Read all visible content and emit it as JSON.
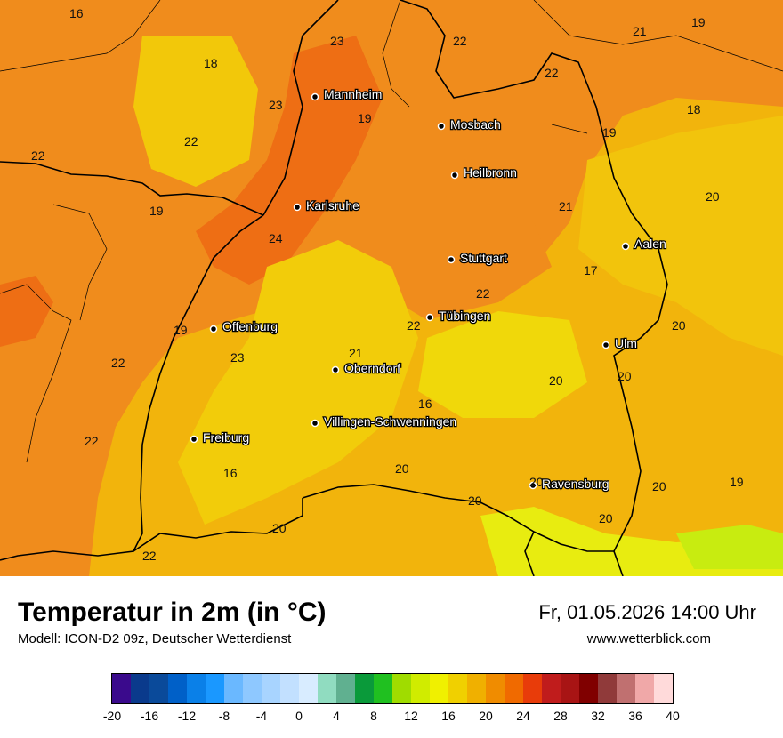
{
  "title": "Temperatur in 2m (in °C)",
  "model": "Modell: ICON-D2 09z, Deutscher Wetterdienst",
  "datetime": "Fr, 01.05.2026 14:00 Uhr",
  "website": "www.wetterblick.com",
  "cities": [
    "Mannheim",
    "Mosbach",
    "Heilbronn",
    "Karlsruhe",
    "Aalen",
    "Stuttgart",
    "Tübingen",
    "Offenburg",
    "Ulm",
    "Oberndorf",
    "Villingen-Schwenningen",
    "Freiburg",
    "Ravensburg"
  ],
  "temperature_labels": [
    "16",
    "23",
    "22",
    "21",
    "19",
    "18",
    "23",
    "22",
    "19",
    "18",
    "22",
    "22",
    "19",
    "21",
    "20",
    "24",
    "17",
    "22",
    "22",
    "20",
    "19",
    "21",
    "23",
    "22",
    "20",
    "20",
    "16",
    "22",
    "20",
    "16",
    "20",
    "20",
    "20",
    "19",
    "20",
    "20",
    "22"
  ],
  "legend": {
    "unit": "°C",
    "tick_labels": [
      "-20",
      "-16",
      "-12",
      "-8",
      "-4",
      "0",
      "4",
      "8",
      "12",
      "16",
      "20",
      "24",
      "28",
      "32",
      "36",
      "40"
    ],
    "colors": [
      "#3a0a8c",
      "#0a3a8c",
      "#0a4a9a",
      "#0060c8",
      "#0a80e8",
      "#1a98ff",
      "#6ab8ff",
      "#8ec8ff",
      "#a8d4ff",
      "#c2e0ff",
      "#d8ecff",
      "#90dcc0",
      "#60b090",
      "#0a9a3a",
      "#20c020",
      "#a0dc00",
      "#d0ec00",
      "#f0f000",
      "#f0d000",
      "#f0b000",
      "#f08c00",
      "#f06a00",
      "#e83c0a",
      "#c01c1c",
      "#a81414",
      "#800000",
      "#903a3a",
      "#c07070",
      "#f0a8a8",
      "#ffdada"
    ]
  }
}
